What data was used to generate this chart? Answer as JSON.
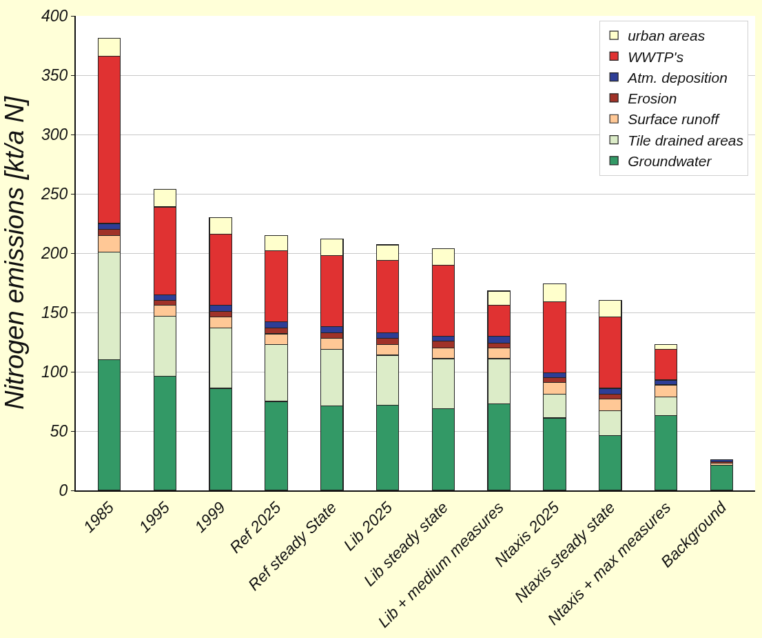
{
  "chart_data": {
    "type": "bar",
    "stacked": true,
    "ylabel": "Nitrogen emissions [kt/a N]",
    "categories": [
      "1985",
      "1995",
      "1999",
      "Ref 2025",
      "Ref steady State",
      "Lib 2025",
      "Lib steady state",
      "Lib + medium measures",
      "Ntaxis 2025",
      "Ntaxis steady state",
      "Ntaxis + max measures",
      "Background"
    ],
    "series": [
      {
        "name": "Groundwater",
        "color": "#339966",
        "values": [
          110,
          96,
          86,
          75,
          71,
          72,
          69,
          73,
          61,
          46,
          63,
          21
        ]
      },
      {
        "name": "Tile drained areas",
        "color": "#dcecc8",
        "values": [
          91,
          51,
          51,
          48,
          48,
          42,
          42,
          38,
          20,
          21,
          16,
          null
        ]
      },
      {
        "name": "Surface runoff",
        "color": "#ffc896",
        "values": [
          14,
          9,
          9,
          9,
          9,
          9,
          9,
          9,
          10,
          10,
          10,
          2
        ]
      },
      {
        "name": "Erosion",
        "color": "#a03228",
        "values": [
          5,
          4,
          5,
          5,
          5,
          5,
          6,
          4,
          4,
          4,
          null,
          1
        ]
      },
      {
        "name": "Atm. deposition",
        "color": "#2e3e96",
        "values": [
          5,
          5,
          5,
          5,
          5,
          5,
          4,
          6,
          4,
          5,
          4,
          2
        ]
      },
      {
        "name": "WWTP's",
        "color": "#e03232",
        "values": [
          141,
          74,
          60,
          60,
          60,
          61,
          60,
          26,
          60,
          60,
          26,
          null
        ]
      },
      {
        "name": "urban areas",
        "color": "#ffffcc",
        "values": [
          15,
          15,
          14,
          13,
          14,
          13,
          14,
          12,
          15,
          14,
          4,
          null
        ]
      }
    ],
    "ylim": [
      0,
      400
    ],
    "yticks": [
      0,
      50,
      100,
      150,
      200,
      250,
      300,
      350,
      400
    ],
    "grid": "y",
    "legend": "top right"
  }
}
